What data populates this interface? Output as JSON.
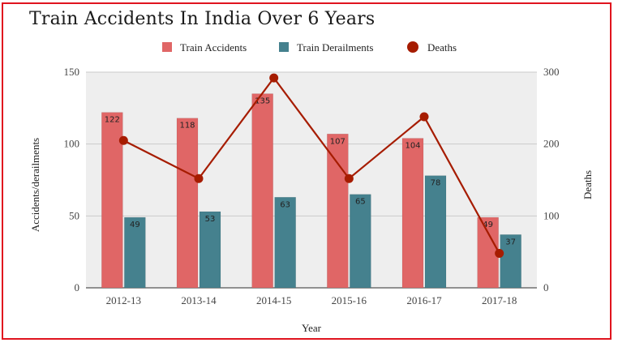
{
  "chart_data": {
    "type": "bar",
    "title": "Train Accidents In India Over 6 Years",
    "xlabel": "Year",
    "ylabel": "Accidents/derailments",
    "y2label": "Deaths",
    "categories": [
      "2012-13",
      "2013-14",
      "2014-15",
      "2015-16",
      "2016-17",
      "2017-18"
    ],
    "ylim": [
      0,
      150
    ],
    "yticks": [
      "0",
      "50",
      "100",
      "150"
    ],
    "y2lim": [
      0,
      300
    ],
    "y2ticks": [
      "0",
      "100",
      "200",
      "300"
    ],
    "grid": true,
    "legend_position": "top-center",
    "series": [
      {
        "name": "Train Accidents",
        "type": "bar",
        "axis": "left",
        "color": "#e06666",
        "values": [
          122,
          118,
          135,
          107,
          104,
          49
        ],
        "labels": [
          "122",
          "118",
          "135",
          "107",
          "104",
          "49"
        ]
      },
      {
        "name": "Train Derailments",
        "type": "bar",
        "axis": "left",
        "color": "#45818e",
        "values": [
          49,
          53,
          63,
          65,
          78,
          37
        ],
        "labels": [
          "49",
          "53",
          "63",
          "65",
          "78",
          "37"
        ]
      },
      {
        "name": "Deaths",
        "type": "line",
        "axis": "right",
        "color": "#a61c00",
        "values": [
          205,
          152,
          292,
          152,
          238,
          48
        ]
      }
    ],
    "plot_background": "#eeeeee",
    "frame_color": "#e0141e"
  }
}
